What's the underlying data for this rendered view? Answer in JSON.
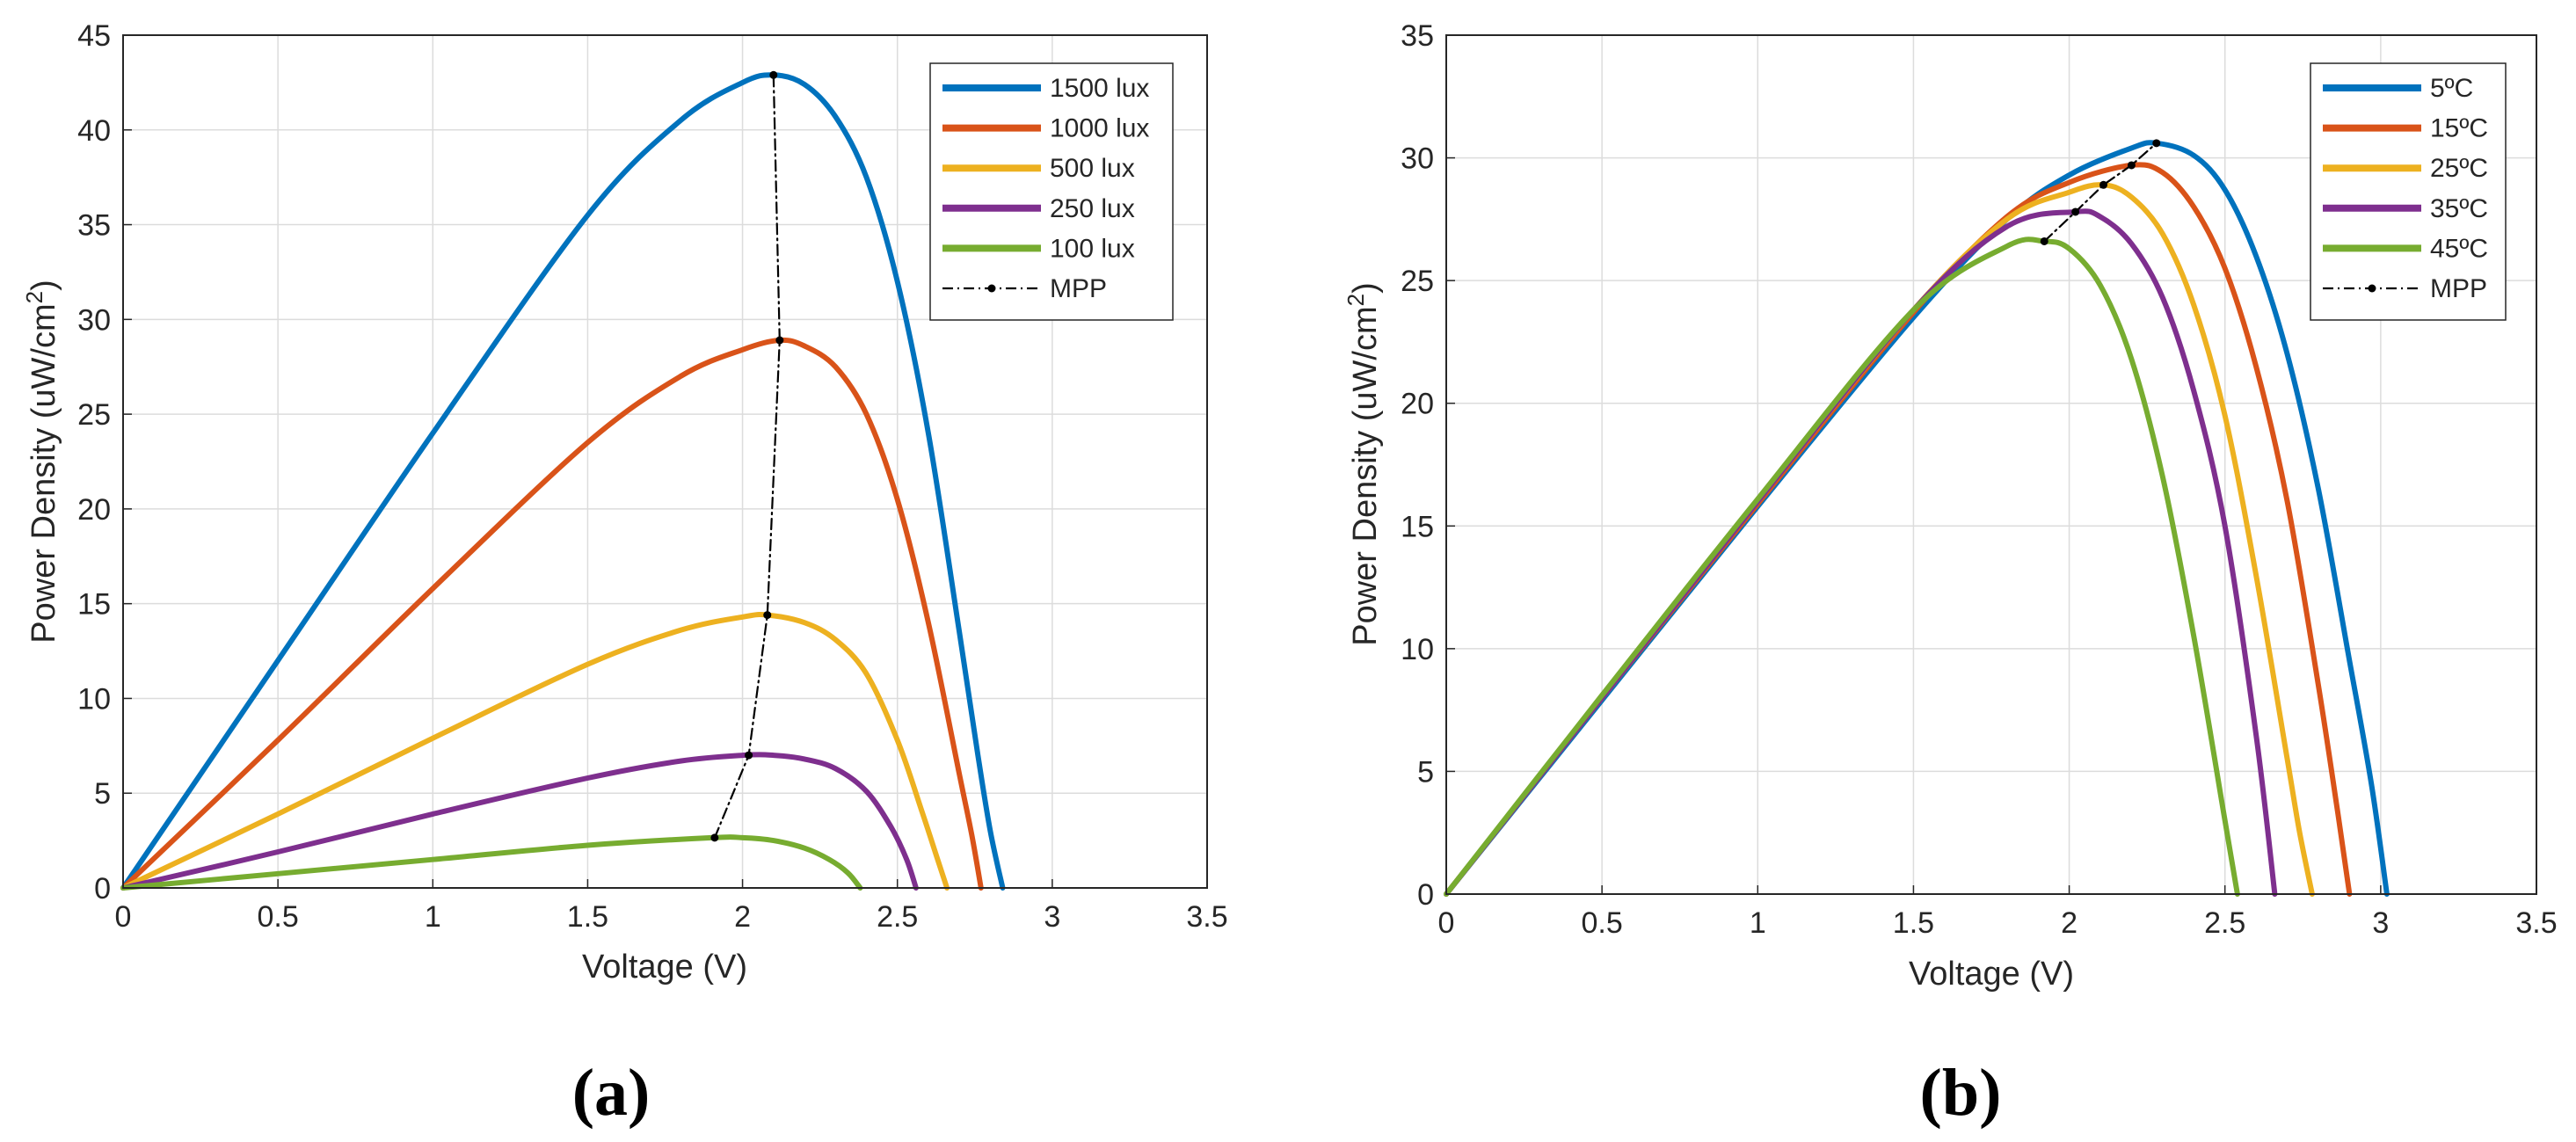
{
  "chart_data": [
    {
      "type": "line",
      "panel_label": "(a)",
      "xlabel": "Voltage (V)",
      "ylabel": "Power Density (uW/cm²)",
      "xlim": [
        0,
        3.5
      ],
      "ylim": [
        0,
        45
      ],
      "xticks": [
        0,
        0.5,
        1,
        1.5,
        2,
        2.5,
        3,
        3.5
      ],
      "xtick_labels": [
        "0",
        "0.5",
        "1",
        "1.5",
        "2",
        "2.5",
        "3",
        "3.5"
      ],
      "yticks": [
        0,
        5,
        10,
        15,
        20,
        25,
        30,
        35,
        40,
        45
      ],
      "ytick_labels": [
        "0",
        "5",
        "10",
        "15",
        "20",
        "25",
        "30",
        "35",
        "40",
        "45"
      ],
      "grid": true,
      "legend_position": "top-right",
      "series": [
        {
          "name": "1500 lux",
          "color": "#0072BD",
          "x": [
            0,
            0.5,
            1.0,
            1.5,
            1.8,
            2.0,
            2.1,
            2.2,
            2.3,
            2.4,
            2.5,
            2.6,
            2.7,
            2.76,
            2.8,
            2.84
          ],
          "y": [
            0,
            12.0,
            24.0,
            35.5,
            40.5,
            42.5,
            42.9,
            42.4,
            40.7,
            37.5,
            32.0,
            24.0,
            13.5,
            7.0,
            3.0,
            0
          ]
        },
        {
          "name": "1000 lux",
          "color": "#D95319",
          "x": [
            0,
            0.5,
            1.0,
            1.5,
            1.8,
            2.0,
            2.12,
            2.2,
            2.3,
            2.4,
            2.5,
            2.6,
            2.7,
            2.74,
            2.77
          ],
          "y": [
            0,
            7.8,
            15.8,
            23.5,
            27.0,
            28.4,
            28.9,
            28.6,
            27.5,
            25.0,
            20.5,
            14.0,
            6.0,
            2.8,
            0
          ]
        },
        {
          "name": "500 lux",
          "color": "#EDB120",
          "x": [
            0,
            0.5,
            1.0,
            1.5,
            1.8,
            2.0,
            2.08,
            2.2,
            2.3,
            2.4,
            2.5,
            2.58,
            2.63,
            2.66
          ],
          "y": [
            0,
            3.9,
            7.9,
            11.8,
            13.6,
            14.3,
            14.4,
            14.0,
            13.1,
            11.3,
            7.8,
            4.0,
            1.5,
            0
          ]
        },
        {
          "name": "250 lux",
          "color": "#7E2F8E",
          "x": [
            0,
            0.5,
            1.0,
            1.5,
            1.8,
            2.0,
            2.1,
            2.2,
            2.3,
            2.4,
            2.48,
            2.53,
            2.56
          ],
          "y": [
            0,
            1.9,
            3.9,
            5.8,
            6.7,
            7.0,
            7.0,
            6.8,
            6.3,
            5.1,
            3.2,
            1.5,
            0
          ]
        },
        {
          "name": "100 lux",
          "color": "#77AC30",
          "x": [
            0,
            0.5,
            1.0,
            1.5,
            1.9,
            2.0,
            2.1,
            2.2,
            2.28,
            2.34,
            2.38
          ],
          "y": [
            0,
            0.75,
            1.5,
            2.25,
            2.65,
            2.65,
            2.5,
            2.1,
            1.5,
            0.8,
            0
          ]
        },
        {
          "name": "MPP",
          "color": "#000000",
          "dashed": true,
          "markers": true,
          "x": [
            1.91,
            2.02,
            2.08,
            2.12,
            2.1
          ],
          "y": [
            2.65,
            7.0,
            14.4,
            28.9,
            42.9
          ]
        }
      ]
    },
    {
      "type": "line",
      "panel_label": "(b)",
      "xlabel": "Voltage (V)",
      "ylabel": "Power Density (uW/cm²)",
      "xlim": [
        0,
        3.5
      ],
      "ylim": [
        0,
        35
      ],
      "xticks": [
        0,
        0.5,
        1,
        1.5,
        2,
        2.5,
        3,
        3.5
      ],
      "xtick_labels": [
        "0",
        "0.5",
        "1",
        "1.5",
        "2",
        "2.5",
        "3",
        "3.5"
      ],
      "yticks": [
        0,
        5,
        10,
        15,
        20,
        25,
        30,
        35
      ],
      "ytick_labels": [
        "0",
        "5",
        "10",
        "15",
        "20",
        "25",
        "30",
        "35"
      ],
      "grid": true,
      "legend_position": "top-right",
      "series": [
        {
          "name": "5ºC",
          "color": "#0072BD",
          "x": [
            0,
            0.5,
            1.0,
            1.5,
            1.8,
            2.0,
            2.2,
            2.28,
            2.4,
            2.5,
            2.6,
            2.7,
            2.8,
            2.9,
            2.97,
            3.02
          ],
          "y": [
            0,
            7.9,
            15.8,
            23.5,
            27.5,
            29.3,
            30.4,
            30.6,
            30.1,
            28.7,
            26.0,
            22.0,
            16.5,
            9.5,
            4.5,
            0
          ]
        },
        {
          "name": "15ºC",
          "color": "#D95319",
          "x": [
            0,
            0.5,
            1.0,
            1.5,
            1.8,
            2.0,
            2.2,
            2.3,
            2.4,
            2.5,
            2.6,
            2.7,
            2.8,
            2.86,
            2.9
          ],
          "y": [
            0,
            8.0,
            15.9,
            23.7,
            27.6,
            29.0,
            29.7,
            29.4,
            28.0,
            25.5,
            21.5,
            16.0,
            8.5,
            3.5,
            0
          ]
        },
        {
          "name": "25ºC",
          "color": "#EDB120",
          "x": [
            0,
            0.5,
            1.0,
            1.5,
            1.8,
            2.0,
            2.11,
            2.2,
            2.3,
            2.4,
            2.5,
            2.6,
            2.7,
            2.74,
            2.78
          ],
          "y": [
            0,
            8.0,
            16.0,
            23.8,
            27.5,
            28.6,
            28.9,
            28.4,
            26.9,
            24.0,
            19.5,
            13.0,
            5.5,
            2.5,
            0
          ]
        },
        {
          "name": "35ºC",
          "color": "#7E2F8E",
          "x": [
            0,
            0.5,
            1.0,
            1.5,
            1.8,
            2.02,
            2.1,
            2.2,
            2.3,
            2.4,
            2.5,
            2.6,
            2.66
          ],
          "y": [
            0,
            8.0,
            16.0,
            23.8,
            27.2,
            27.8,
            27.6,
            26.5,
            24.3,
            20.5,
            15.0,
            6.5,
            0
          ]
        },
        {
          "name": "45ºC",
          "color": "#77AC30",
          "x": [
            0,
            0.5,
            1.0,
            1.5,
            1.8,
            1.92,
            2.0,
            2.1,
            2.2,
            2.3,
            2.4,
            2.5,
            2.54
          ],
          "y": [
            0,
            8.1,
            16.1,
            23.8,
            26.4,
            26.6,
            26.3,
            24.8,
            21.8,
            17.0,
            10.5,
            3.0,
            0
          ]
        },
        {
          "name": "MPP",
          "color": "#000000",
          "dashed": true,
          "markers": true,
          "x": [
            1.92,
            2.02,
            2.11,
            2.2,
            2.28
          ],
          "y": [
            26.6,
            27.8,
            28.9,
            29.7,
            30.6
          ]
        }
      ]
    }
  ]
}
